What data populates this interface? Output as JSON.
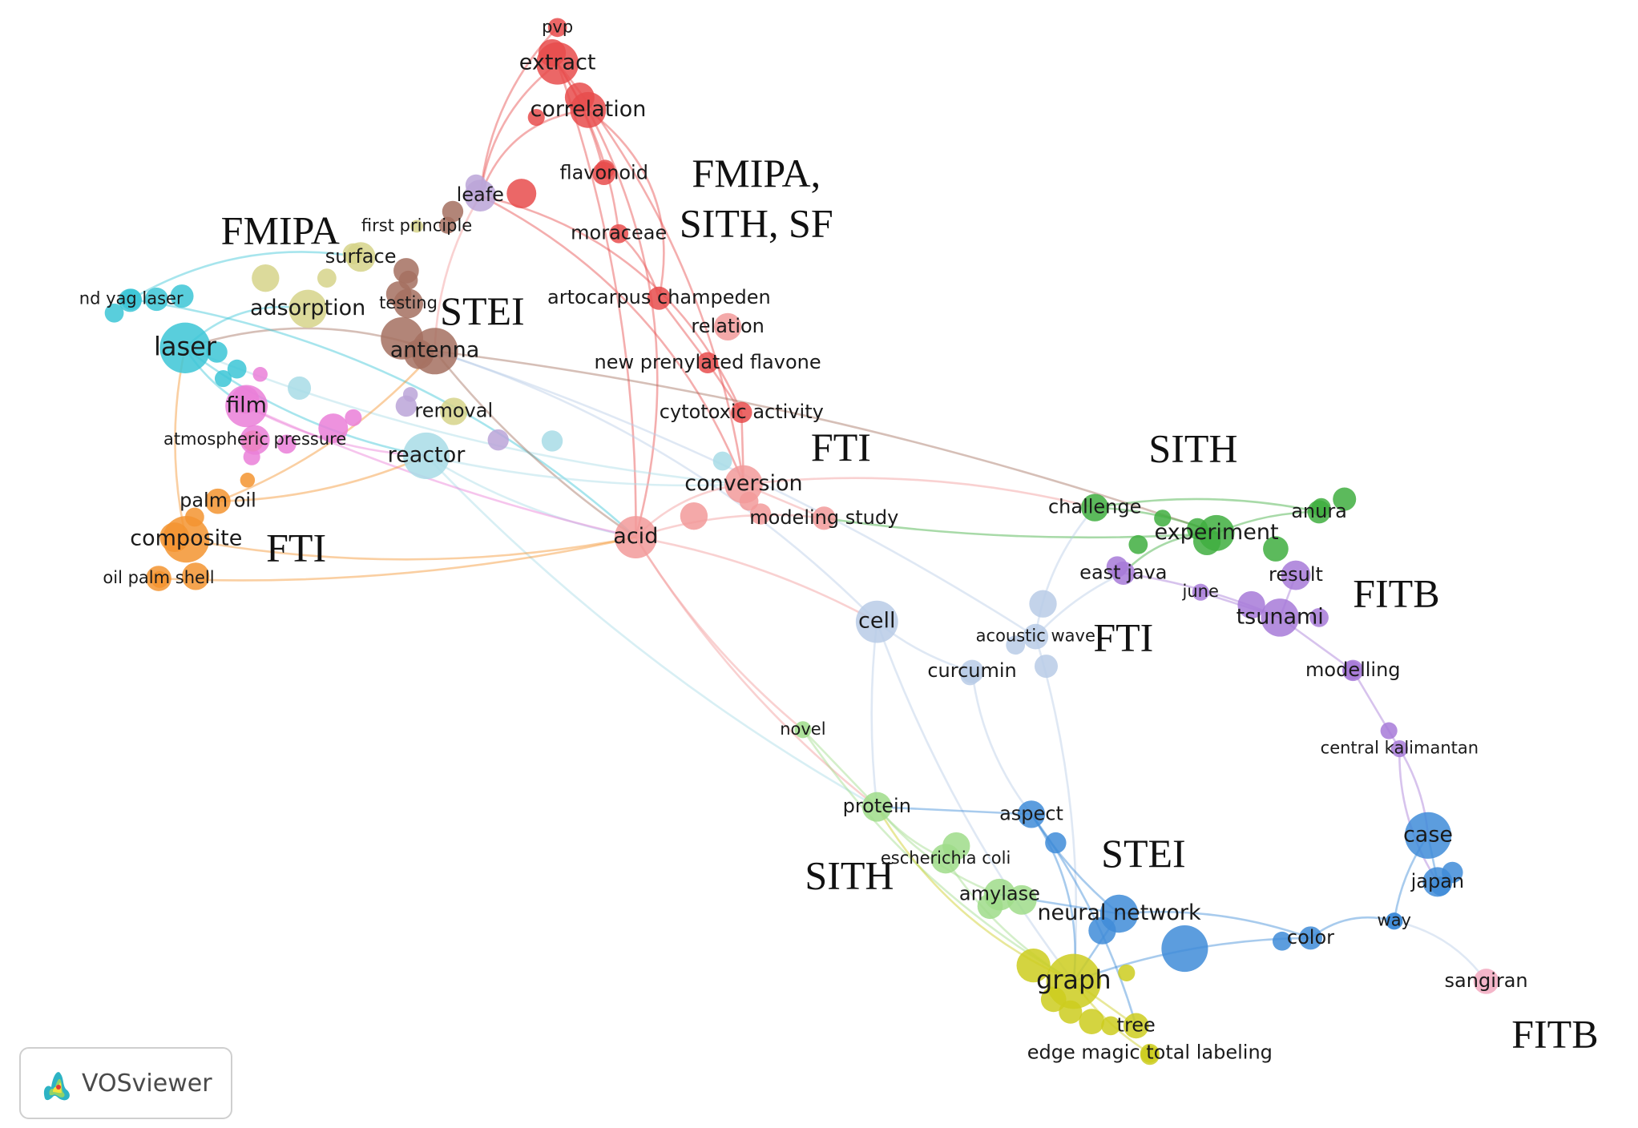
{
  "colors": {
    "red": "#e74c4c",
    "salmon": "#f29a9a",
    "brown": "#a47060",
    "lilac": "#bba4d8",
    "olive": "#d6d48a",
    "cyan": "#3cc6d6",
    "lightcyan": "#a8dce6",
    "magenta": "#ea7fd8",
    "orange": "#f39430",
    "green": "#3fae3f",
    "lightgreen": "#9fdc8a",
    "purple": "#a77ad8",
    "blue": "#3f8cd8",
    "paleblue": "#b8cbe6",
    "yellow": "#cdcc1e",
    "pink": "#f2a9c0"
  },
  "terms": [
    {
      "id": "pvp",
      "label": "pvp",
      "color": "red"
    },
    {
      "id": "extract",
      "label": "extract",
      "color": "red"
    },
    {
      "id": "correlation",
      "label": "correlation",
      "color": "red"
    },
    {
      "id": "flavonoid",
      "label": "flavonoid",
      "color": "red"
    },
    {
      "id": "moraceae",
      "label": "moraceae",
      "color": "red"
    },
    {
      "id": "leafe",
      "label": "leafe",
      "color": "lilac"
    },
    {
      "id": "first_principle",
      "label": "first principle",
      "color": "olive"
    },
    {
      "id": "surface",
      "label": "surface",
      "color": "olive"
    },
    {
      "id": "adsorption",
      "label": "adsorption",
      "color": "olive"
    },
    {
      "id": "testing",
      "label": "testing",
      "color": "brown"
    },
    {
      "id": "antenna",
      "label": "antenna",
      "color": "brown"
    },
    {
      "id": "nd_yag_laser",
      "label": "nd yag laser",
      "color": "cyan"
    },
    {
      "id": "laser",
      "label": "laser",
      "color": "cyan"
    },
    {
      "id": "film",
      "label": "film",
      "color": "magenta"
    },
    {
      "id": "removal",
      "label": "removal",
      "color": "olive"
    },
    {
      "id": "atmospheric_pressure",
      "label": "atmospheric pressure",
      "color": "magenta"
    },
    {
      "id": "reactor",
      "label": "reactor",
      "color": "lightcyan"
    },
    {
      "id": "palm_oil",
      "label": "palm oil",
      "color": "orange"
    },
    {
      "id": "composite",
      "label": "composite",
      "color": "orange"
    },
    {
      "id": "oil_palm_shell",
      "label": "oil palm shell",
      "color": "orange"
    },
    {
      "id": "artocarpus",
      "label": "artocarpus champeden",
      "color": "red"
    },
    {
      "id": "relation",
      "label": "relation",
      "color": "salmon"
    },
    {
      "id": "new_prenylated",
      "label": "new prenylated flavone",
      "color": "red"
    },
    {
      "id": "cytotoxic",
      "label": "cytotoxic activity",
      "color": "red"
    },
    {
      "id": "conversion",
      "label": "conversion",
      "color": "salmon"
    },
    {
      "id": "modeling_study",
      "label": "modeling study",
      "color": "salmon"
    },
    {
      "id": "acid",
      "label": "acid",
      "color": "salmon"
    },
    {
      "id": "challenge",
      "label": "challenge",
      "color": "green"
    },
    {
      "id": "experiment",
      "label": "experiment",
      "color": "green"
    },
    {
      "id": "anura",
      "label": "anura",
      "color": "green"
    },
    {
      "id": "east_java",
      "label": "east java",
      "color": "purple"
    },
    {
      "id": "june",
      "label": "june",
      "color": "purple"
    },
    {
      "id": "result",
      "label": "result",
      "color": "purple"
    },
    {
      "id": "tsunami",
      "label": "tsunami",
      "color": "purple"
    },
    {
      "id": "modelling",
      "label": "modelling",
      "color": "purple"
    },
    {
      "id": "central_kalimantan",
      "label": "central kalimantan",
      "color": "purple"
    },
    {
      "id": "cell",
      "label": "cell",
      "color": "paleblue"
    },
    {
      "id": "acoustic_wave",
      "label": "acoustic wave",
      "color": "paleblue"
    },
    {
      "id": "curcumin",
      "label": "curcumin",
      "color": "paleblue"
    },
    {
      "id": "novel",
      "label": "novel",
      "color": "lightgreen"
    },
    {
      "id": "protein",
      "label": "protein",
      "color": "lightgreen"
    },
    {
      "id": "aspect",
      "label": "aspect",
      "color": "blue"
    },
    {
      "id": "escherichia",
      "label": "escherichia coli",
      "color": "lightgreen"
    },
    {
      "id": "amylase",
      "label": "amylase",
      "color": "lightgreen"
    },
    {
      "id": "neural_network",
      "label": "neural network",
      "color": "blue"
    },
    {
      "id": "graph",
      "label": "graph",
      "color": "yellow"
    },
    {
      "id": "tree",
      "label": "tree",
      "color": "yellow"
    },
    {
      "id": "edge_magic",
      "label": "edge magic total labeling",
      "color": "yellow"
    },
    {
      "id": "color",
      "label": "color",
      "color": "blue"
    },
    {
      "id": "way",
      "label": "way",
      "color": "blue"
    },
    {
      "id": "case",
      "label": "case",
      "color": "blue"
    },
    {
      "id": "japan",
      "label": "japan",
      "color": "blue"
    },
    {
      "id": "sangiran",
      "label": "sangiran",
      "color": "pink"
    }
  ],
  "group_labels": [
    {
      "id": "g1",
      "text": "FMIPA,"
    },
    {
      "id": "g2",
      "text": "SITH, SF"
    },
    {
      "id": "g3",
      "text": "FMIPA"
    },
    {
      "id": "g4",
      "text": "STEI"
    },
    {
      "id": "g5",
      "text": "FTI"
    },
    {
      "id": "g6",
      "text": "FTI"
    },
    {
      "id": "g7",
      "text": "SITH"
    },
    {
      "id": "g8",
      "text": "FITB"
    },
    {
      "id": "g9",
      "text": "FTI"
    },
    {
      "id": "g10",
      "text": "STEI"
    },
    {
      "id": "g11",
      "text": "SITH"
    },
    {
      "id": "g12",
      "text": "FITB"
    }
  ],
  "badge": {
    "text": "VOSviewer"
  }
}
